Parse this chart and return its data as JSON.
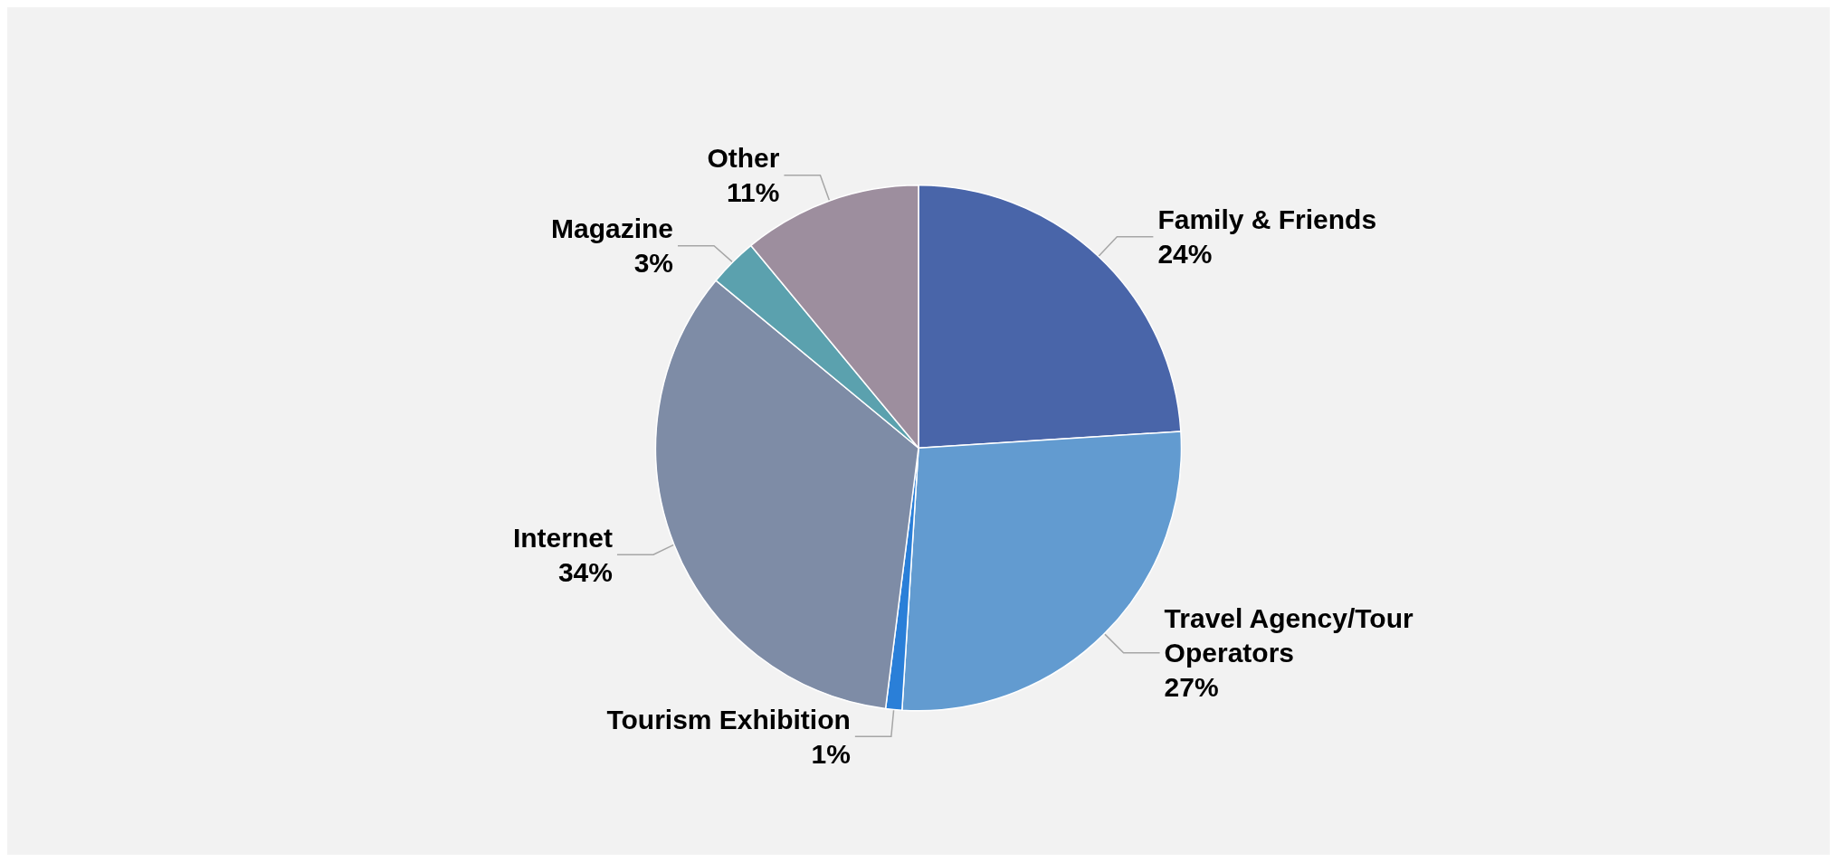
{
  "chart_data": {
    "type": "pie",
    "categories": [
      "Family & Friends",
      "Travel Agency/Tour Operators",
      "Tourism Exhibition",
      "Internet",
      "Magazine",
      "Other"
    ],
    "values": [
      24,
      27,
      1,
      34,
      3,
      11
    ],
    "value_labels": [
      "24%",
      "27%",
      "1%",
      "34%",
      "3%",
      "11%"
    ],
    "colors": [
      "#4965a9",
      "#629bd0",
      "#2a7fd8",
      "#7e8ca6",
      "#5ba1ae",
      "#9d8e9e"
    ],
    "legend": false
  }
}
